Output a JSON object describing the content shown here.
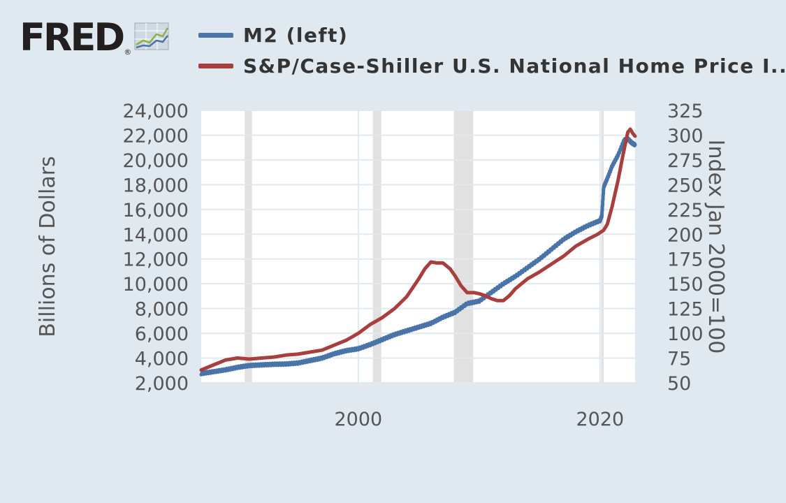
{
  "header": {
    "logo_text": "FRED",
    "logo_mark": "®",
    "logo_icon": "line-graph-icon"
  },
  "colors": {
    "m2": "#4a74a8",
    "hpi": "#a83f3f",
    "recession": "#e1e1e1",
    "grid": "#e1e9f0",
    "plot_bg": "#ffffff"
  },
  "chart_data": {
    "type": "line",
    "x_range": [
      1987,
      2022.9
    ],
    "x_ticks": [
      {
        "value": 2000,
        "label": "2000"
      },
      {
        "value": 2020,
        "label": "2020"
      }
    ],
    "left_axis": {
      "label": "Billions of Dollars",
      "ylim": [
        2000,
        24000
      ],
      "ticks": [
        "2,000",
        "4,000",
        "6,000",
        "8,000",
        "10,000",
        "12,000",
        "14,000",
        "16,000",
        "18,000",
        "20,000",
        "22,000",
        "24,000"
      ]
    },
    "right_axis": {
      "label": "Index Jan 2000=100",
      "ylim": [
        50,
        325
      ],
      "ticks": [
        "50",
        "75",
        "100",
        "125",
        "150",
        "175",
        "200",
        "225",
        "250",
        "275",
        "300",
        "325"
      ]
    },
    "recessions": [
      [
        1990.6,
        1991.2
      ],
      [
        2001.2,
        2001.9
      ],
      [
        2007.9,
        2009.5
      ],
      [
        2020.1,
        2020.3
      ]
    ],
    "series": [
      {
        "name": "M2 (left)",
        "axis": "left",
        "points": [
          [
            1987,
            2750
          ],
          [
            1988,
            2900
          ],
          [
            1989,
            3050
          ],
          [
            1990,
            3250
          ],
          [
            1991,
            3400
          ],
          [
            1992,
            3450
          ],
          [
            1993,
            3500
          ],
          [
            1994,
            3520
          ],
          [
            1995,
            3600
          ],
          [
            1996,
            3800
          ],
          [
            1997,
            4000
          ],
          [
            1998,
            4350
          ],
          [
            1999,
            4600
          ],
          [
            2000,
            4750
          ],
          [
            2001,
            5100
          ],
          [
            2002,
            5500
          ],
          [
            2003,
            5900
          ],
          [
            2004,
            6200
          ],
          [
            2005,
            6500
          ],
          [
            2006,
            6800
          ],
          [
            2007,
            7300
          ],
          [
            2008,
            7700
          ],
          [
            2009,
            8400
          ],
          [
            2010,
            8600
          ],
          [
            2011,
            9300
          ],
          [
            2012,
            10000
          ],
          [
            2013,
            10600
          ],
          [
            2014,
            11300
          ],
          [
            2015,
            12000
          ],
          [
            2016,
            12800
          ],
          [
            2017,
            13600
          ],
          [
            2018,
            14200
          ],
          [
            2019,
            14700
          ],
          [
            2020.0,
            15100
          ],
          [
            2020.15,
            15500
          ],
          [
            2020.3,
            17800
          ],
          [
            2020.6,
            18500
          ],
          [
            2021.0,
            19500
          ],
          [
            2021.5,
            20400
          ],
          [
            2022.0,
            21600
          ],
          [
            2022.3,
            21700
          ],
          [
            2022.6,
            21400
          ],
          [
            2022.9,
            21200
          ]
        ]
      },
      {
        "name": "S&P/Case-Shiller U.S. National Home Price I...",
        "axis": "right",
        "points": [
          [
            1987,
            63
          ],
          [
            1988,
            68
          ],
          [
            1989,
            73
          ],
          [
            1990,
            75
          ],
          [
            1991,
            74
          ],
          [
            1992,
            75
          ],
          [
            1993,
            76
          ],
          [
            1994,
            78
          ],
          [
            1995,
            79
          ],
          [
            1996,
            81
          ],
          [
            1997,
            83
          ],
          [
            1998,
            88
          ],
          [
            1999,
            93
          ],
          [
            2000,
            100
          ],
          [
            2001,
            109
          ],
          [
            2002,
            116
          ],
          [
            2003,
            125
          ],
          [
            2004,
            137
          ],
          [
            2005,
            155
          ],
          [
            2005.5,
            165
          ],
          [
            2006,
            172
          ],
          [
            2006.5,
            171
          ],
          [
            2007,
            171
          ],
          [
            2007.6,
            165
          ],
          [
            2008,
            158
          ],
          [
            2008.5,
            148
          ],
          [
            2009,
            141
          ],
          [
            2009.6,
            141
          ],
          [
            2010,
            140
          ],
          [
            2010.5,
            138
          ],
          [
            2011,
            135
          ],
          [
            2011.5,
            133
          ],
          [
            2012,
            133
          ],
          [
            2012.5,
            138
          ],
          [
            2013,
            145
          ],
          [
            2014,
            155
          ],
          [
            2015,
            162
          ],
          [
            2016,
            170
          ],
          [
            2017,
            178
          ],
          [
            2018,
            188
          ],
          [
            2019,
            195
          ],
          [
            2019.8,
            200
          ],
          [
            2020.3,
            204
          ],
          [
            2020.6,
            210
          ],
          [
            2021,
            228
          ],
          [
            2021.5,
            255
          ],
          [
            2021.9,
            280
          ],
          [
            2022.3,
            303
          ],
          [
            2022.5,
            306
          ],
          [
            2022.7,
            302
          ],
          [
            2022.9,
            299
          ]
        ]
      }
    ]
  }
}
